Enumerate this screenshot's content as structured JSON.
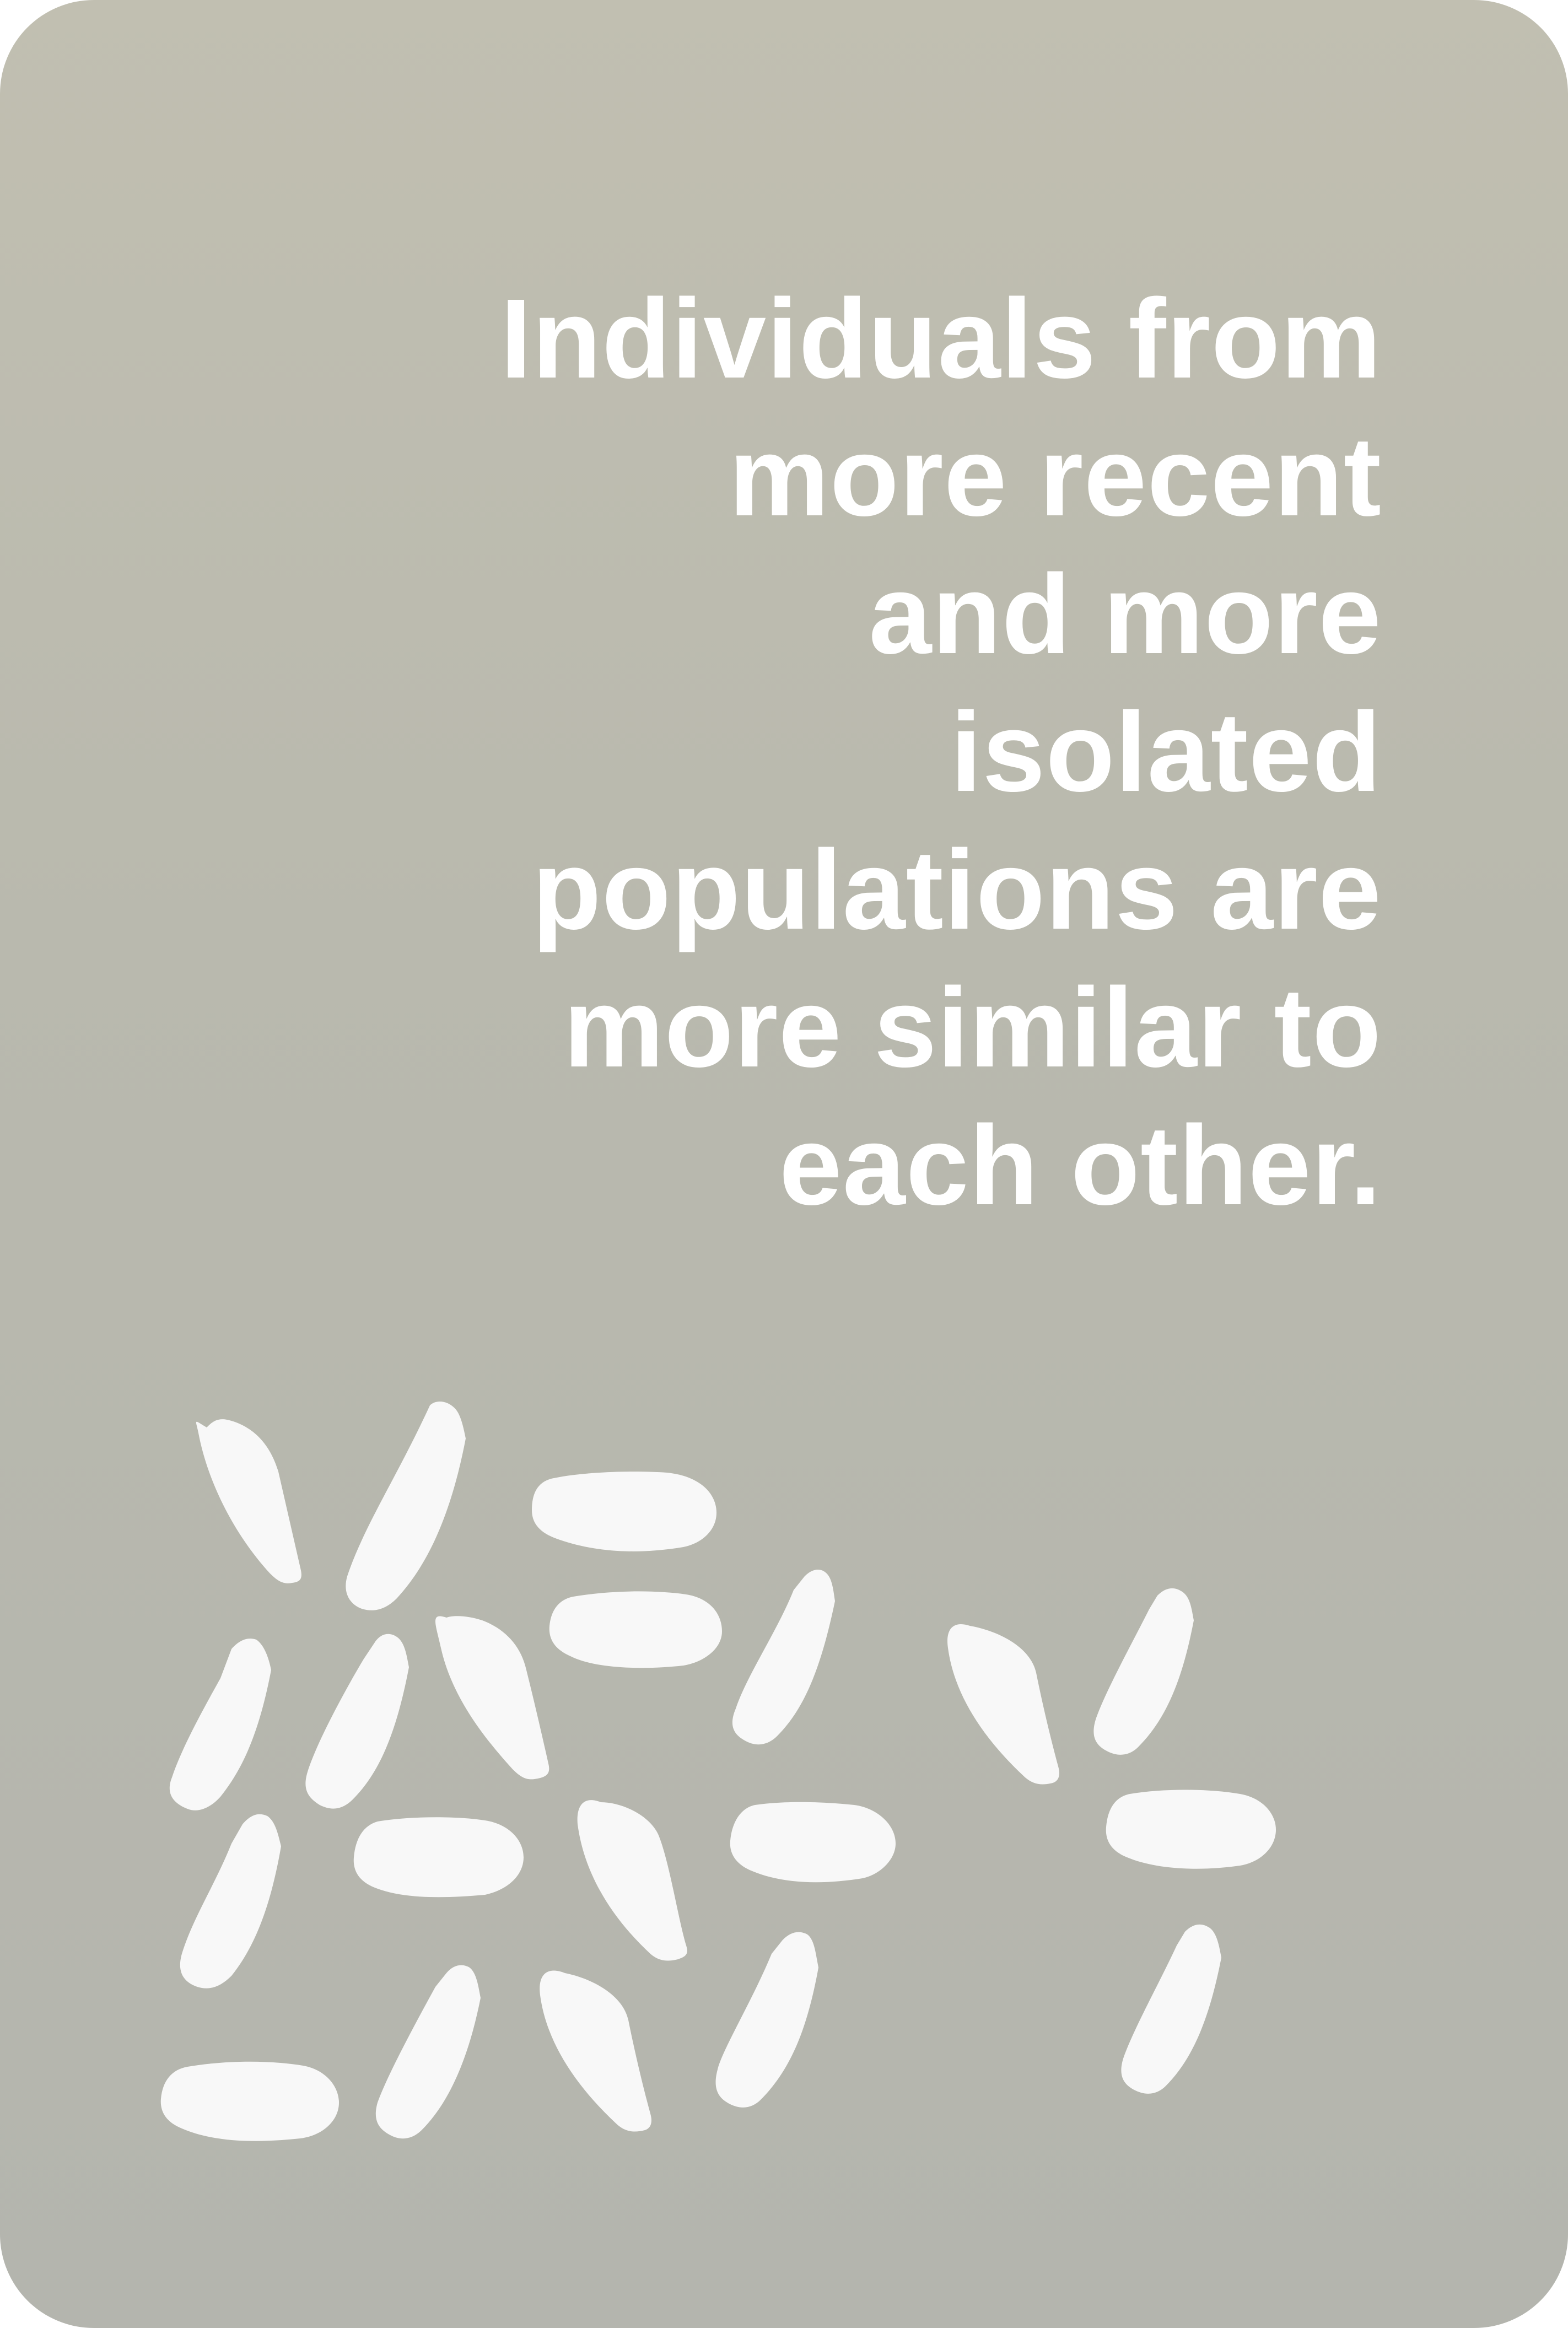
{
  "card": {
    "text_lines": [
      "Individuals from",
      "more recent",
      "and more",
      "isolated",
      "populations are",
      "more similar to",
      "each other."
    ],
    "background_color": "#b9b9ae",
    "text_color": "#ffffff",
    "grain_color": "#f8f8f8",
    "grain_count": 20
  }
}
